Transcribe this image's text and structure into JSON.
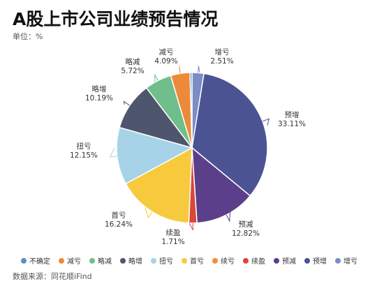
{
  "title": "A股上市公司业绩预告情况",
  "unit_text": "单位：%",
  "source_text": "数据来源：同花顺iFind",
  "chart_data": {
    "type": "pie",
    "title": "A股上市公司业绩预告情况",
    "unit": "%",
    "legend_placement": "bottom",
    "slices": [
      {
        "name": "不确定",
        "value": 0.42,
        "color": "#5b8fc9",
        "show_label": false
      },
      {
        "name": "减亏",
        "value": 4.09,
        "color": "#ec8a3a",
        "show_label": true
      },
      {
        "name": "略减",
        "value": 5.72,
        "color": "#6fbe8c",
        "show_label": true
      },
      {
        "name": "略增",
        "value": 10.19,
        "color": "#4e566d",
        "show_label": true
      },
      {
        "name": "扭亏",
        "value": 12.15,
        "color": "#a6d3e8",
        "show_label": true
      },
      {
        "name": "首亏",
        "value": 16.24,
        "color": "#f7ca3e",
        "show_label": true
      },
      {
        "name": "续亏",
        "value": 0.0,
        "color": "#ef8f3c",
        "show_label": false
      },
      {
        "name": "续盈",
        "value": 1.71,
        "color": "#d9473a",
        "show_label": true
      },
      {
        "name": "预减",
        "value": 12.82,
        "color": "#5c3f8a",
        "show_label": true
      },
      {
        "name": "预增",
        "value": 33.11,
        "color": "#4b5393",
        "show_label": true
      },
      {
        "name": "增亏",
        "value": 2.51,
        "color": "#7b8cc6",
        "show_label": true
      }
    ]
  }
}
